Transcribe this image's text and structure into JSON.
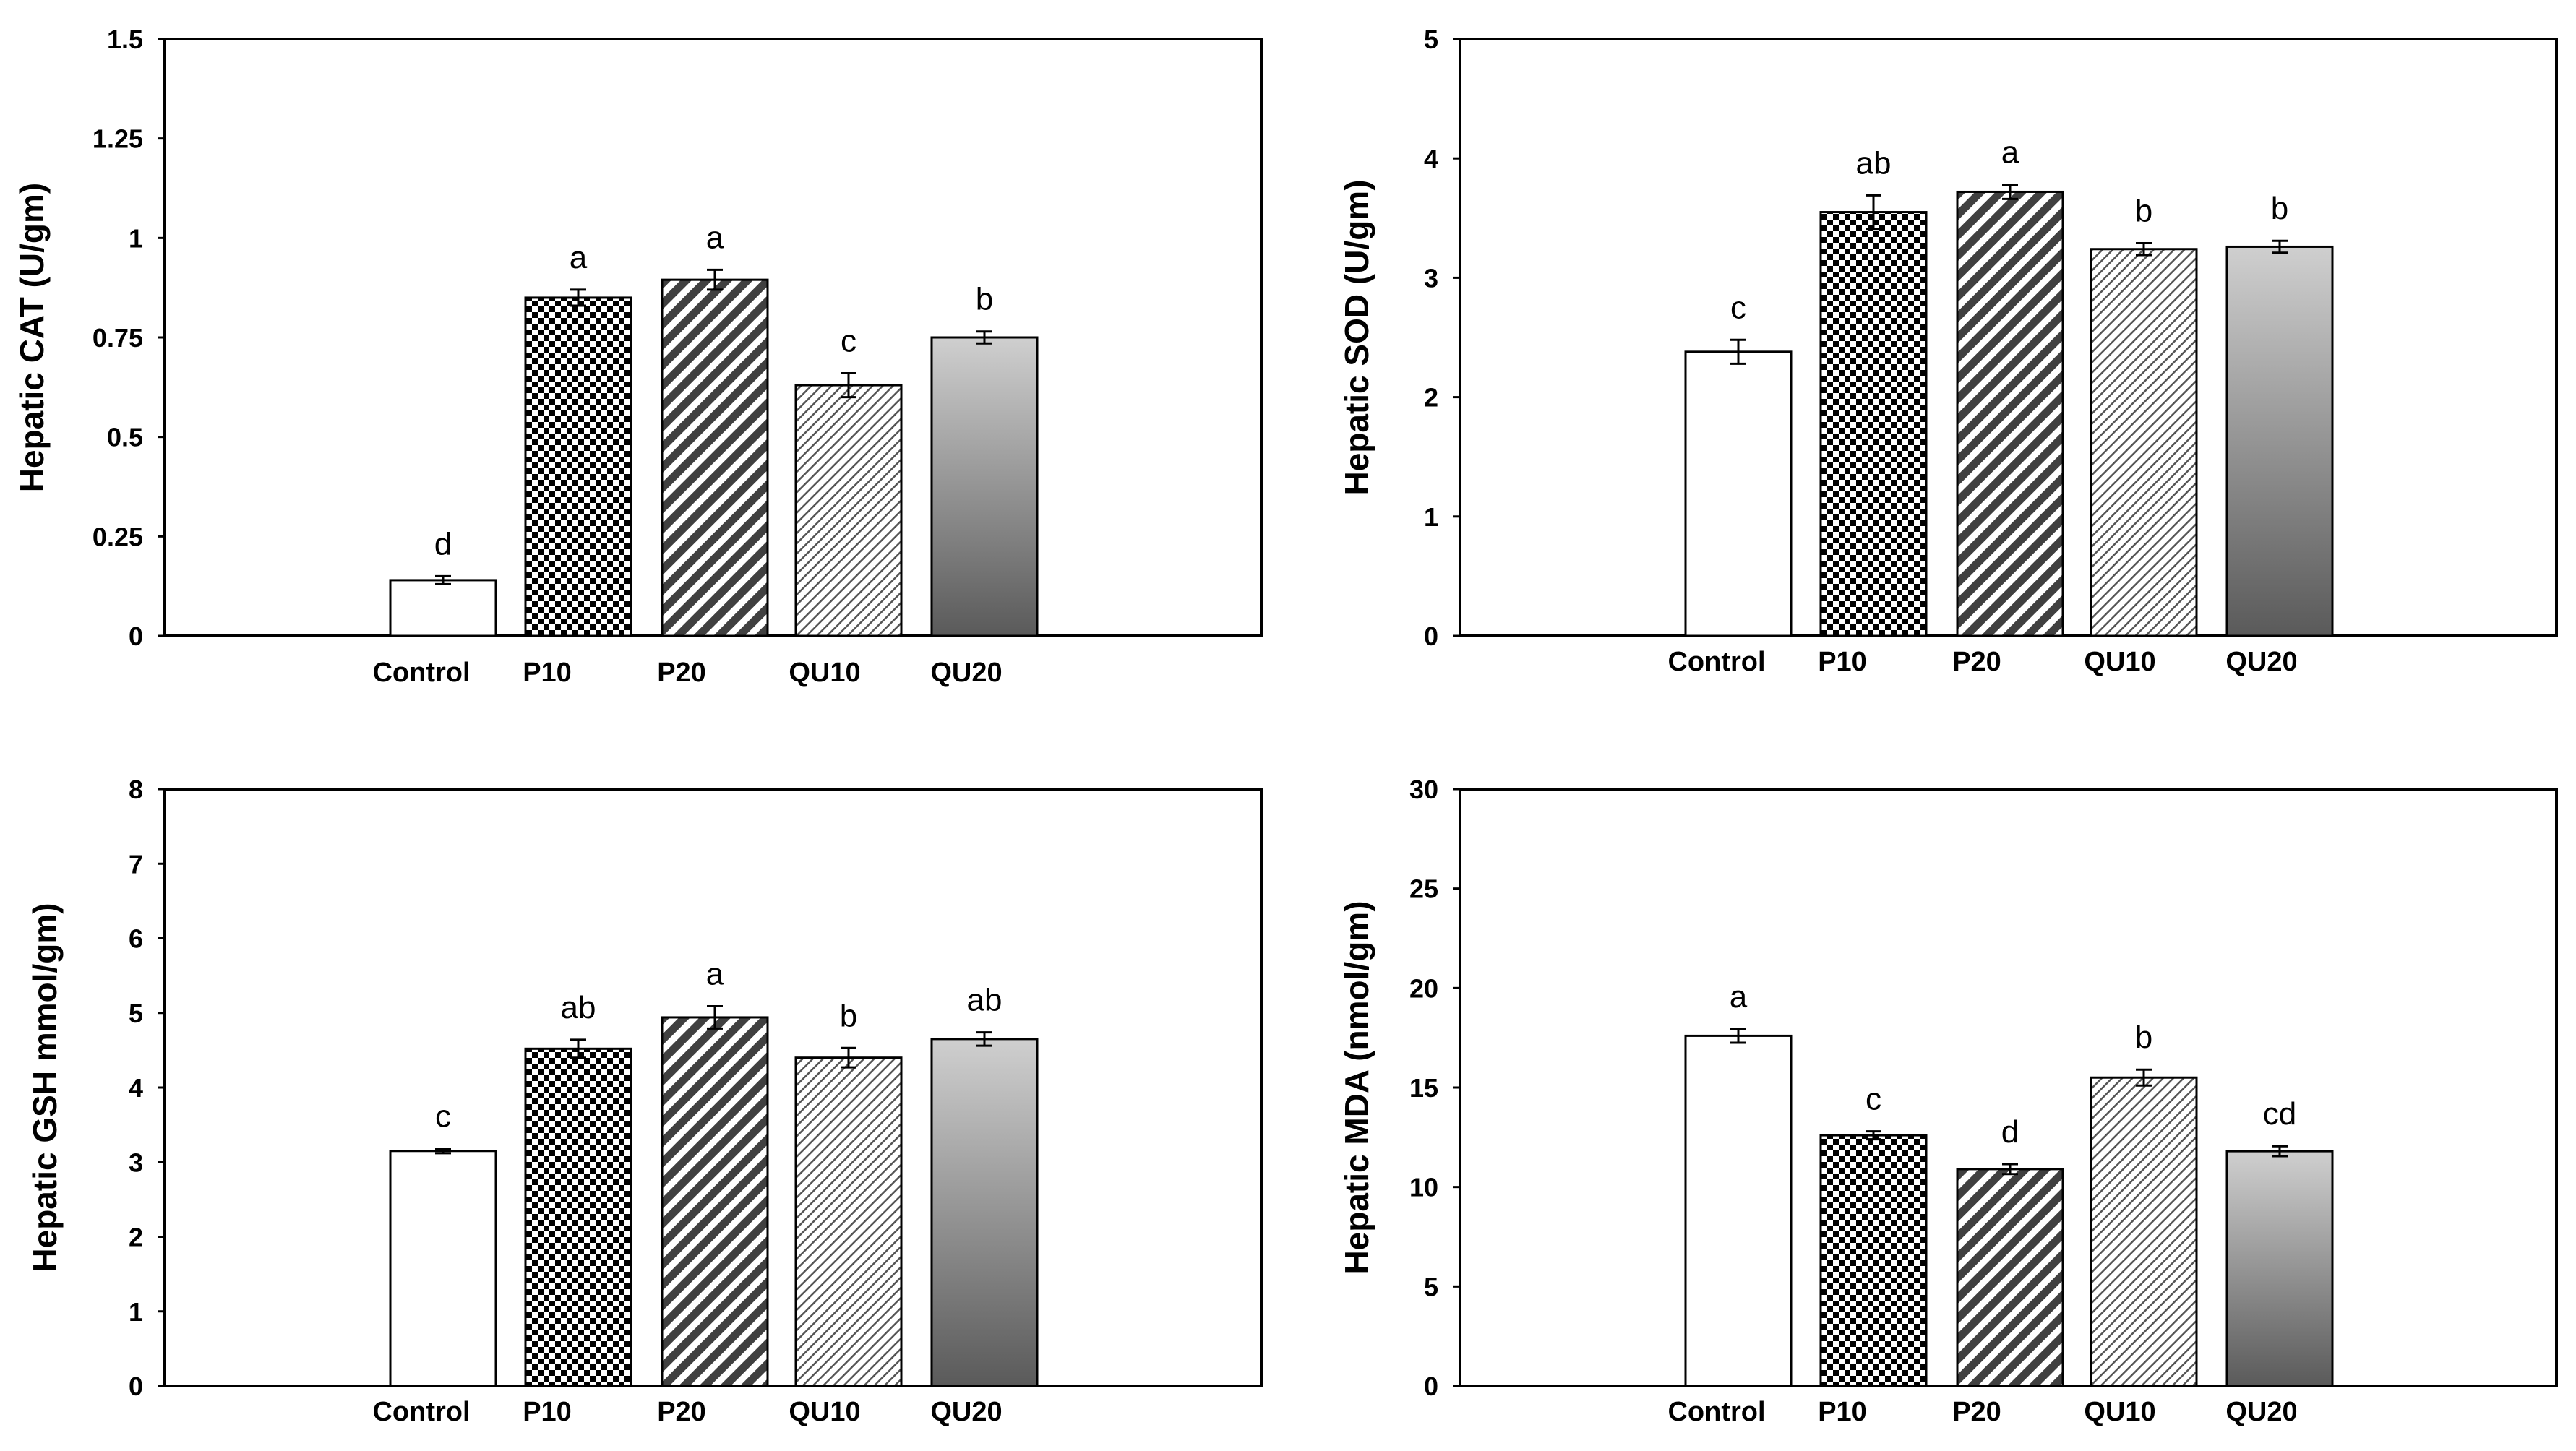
{
  "colors": {
    "axis": "#000000",
    "bar_stroke": "#000000",
    "control_fill": "#ffffff",
    "dark_hatch": "#404040",
    "light_hatch": "#555555",
    "gradient_top": "#cfcfcf",
    "gradient_bottom": "#5a5a5a"
  },
  "patterns": [
    "solid-white",
    "checkerboard",
    "dark-diagonal-hatch",
    "light-diagonal-hatch",
    "gray-gradient"
  ],
  "chart_data": [
    {
      "type": "bar",
      "ylabel": "Hepatic CAT (U/gm)",
      "categories": [
        "Control",
        "P10",
        "P20",
        "QU10",
        "QU20"
      ],
      "values": [
        0.14,
        0.85,
        0.895,
        0.63,
        0.75
      ],
      "errors": [
        0.01,
        0.02,
        0.025,
        0.03,
        0.015
      ],
      "letters": [
        "d",
        "a",
        "a",
        "c",
        "b"
      ],
      "ylim": [
        0,
        1.5
      ],
      "yticks": [
        0,
        0.25,
        0.5,
        0.75,
        1,
        1.25,
        1.5
      ],
      "ytick_labels": [
        "0",
        "0.25",
        "0.5",
        "0.75",
        "1",
        "1.25",
        "1.5"
      ]
    },
    {
      "type": "bar",
      "ylabel": "Hepatic SOD (U/gm)",
      "categories": [
        "Control",
        "P10",
        "P20",
        "QU10",
        "QU20"
      ],
      "values": [
        2.38,
        3.55,
        3.72,
        3.24,
        3.26
      ],
      "errors": [
        0.1,
        0.14,
        0.06,
        0.05,
        0.05
      ],
      "letters": [
        "c",
        "ab",
        "a",
        "b",
        "b"
      ],
      "ylim": [
        0,
        5
      ],
      "yticks": [
        0,
        1,
        2,
        3,
        4,
        5
      ],
      "ytick_labels": [
        "0",
        "1",
        "2",
        "3",
        "4",
        "5"
      ]
    },
    {
      "type": "bar",
      "ylabel": "Hepatic GSH mmol/gm)",
      "categories": [
        "Control",
        "P10",
        "P20",
        "QU10",
        "QU20"
      ],
      "values": [
        3.15,
        4.52,
        4.94,
        4.4,
        4.65
      ],
      "errors": [
        0.03,
        0.12,
        0.15,
        0.13,
        0.09
      ],
      "letters": [
        "c",
        "ab",
        "a",
        "b",
        "ab"
      ],
      "ylim": [
        0,
        8
      ],
      "yticks": [
        0,
        1,
        2,
        3,
        4,
        5,
        6,
        7,
        8
      ],
      "ytick_labels": [
        "0",
        "1",
        "2",
        "3",
        "4",
        "5",
        "6",
        "7",
        "8"
      ]
    },
    {
      "type": "bar",
      "ylabel": "Hepatic MDA  (nmol/gm)",
      "categories": [
        "Control",
        "P10",
        "P20",
        "QU10",
        "QU20"
      ],
      "values": [
        17.6,
        12.6,
        10.9,
        15.5,
        11.8
      ],
      "errors": [
        0.35,
        0.2,
        0.25,
        0.4,
        0.25
      ],
      "letters": [
        "a",
        "c",
        "d",
        "b",
        "cd"
      ],
      "ylim": [
        0,
        30
      ],
      "yticks": [
        0,
        5,
        10,
        15,
        20,
        25,
        30
      ],
      "ytick_labels": [
        "0",
        "5",
        "10",
        "15",
        "20",
        "25",
        "30"
      ]
    }
  ]
}
